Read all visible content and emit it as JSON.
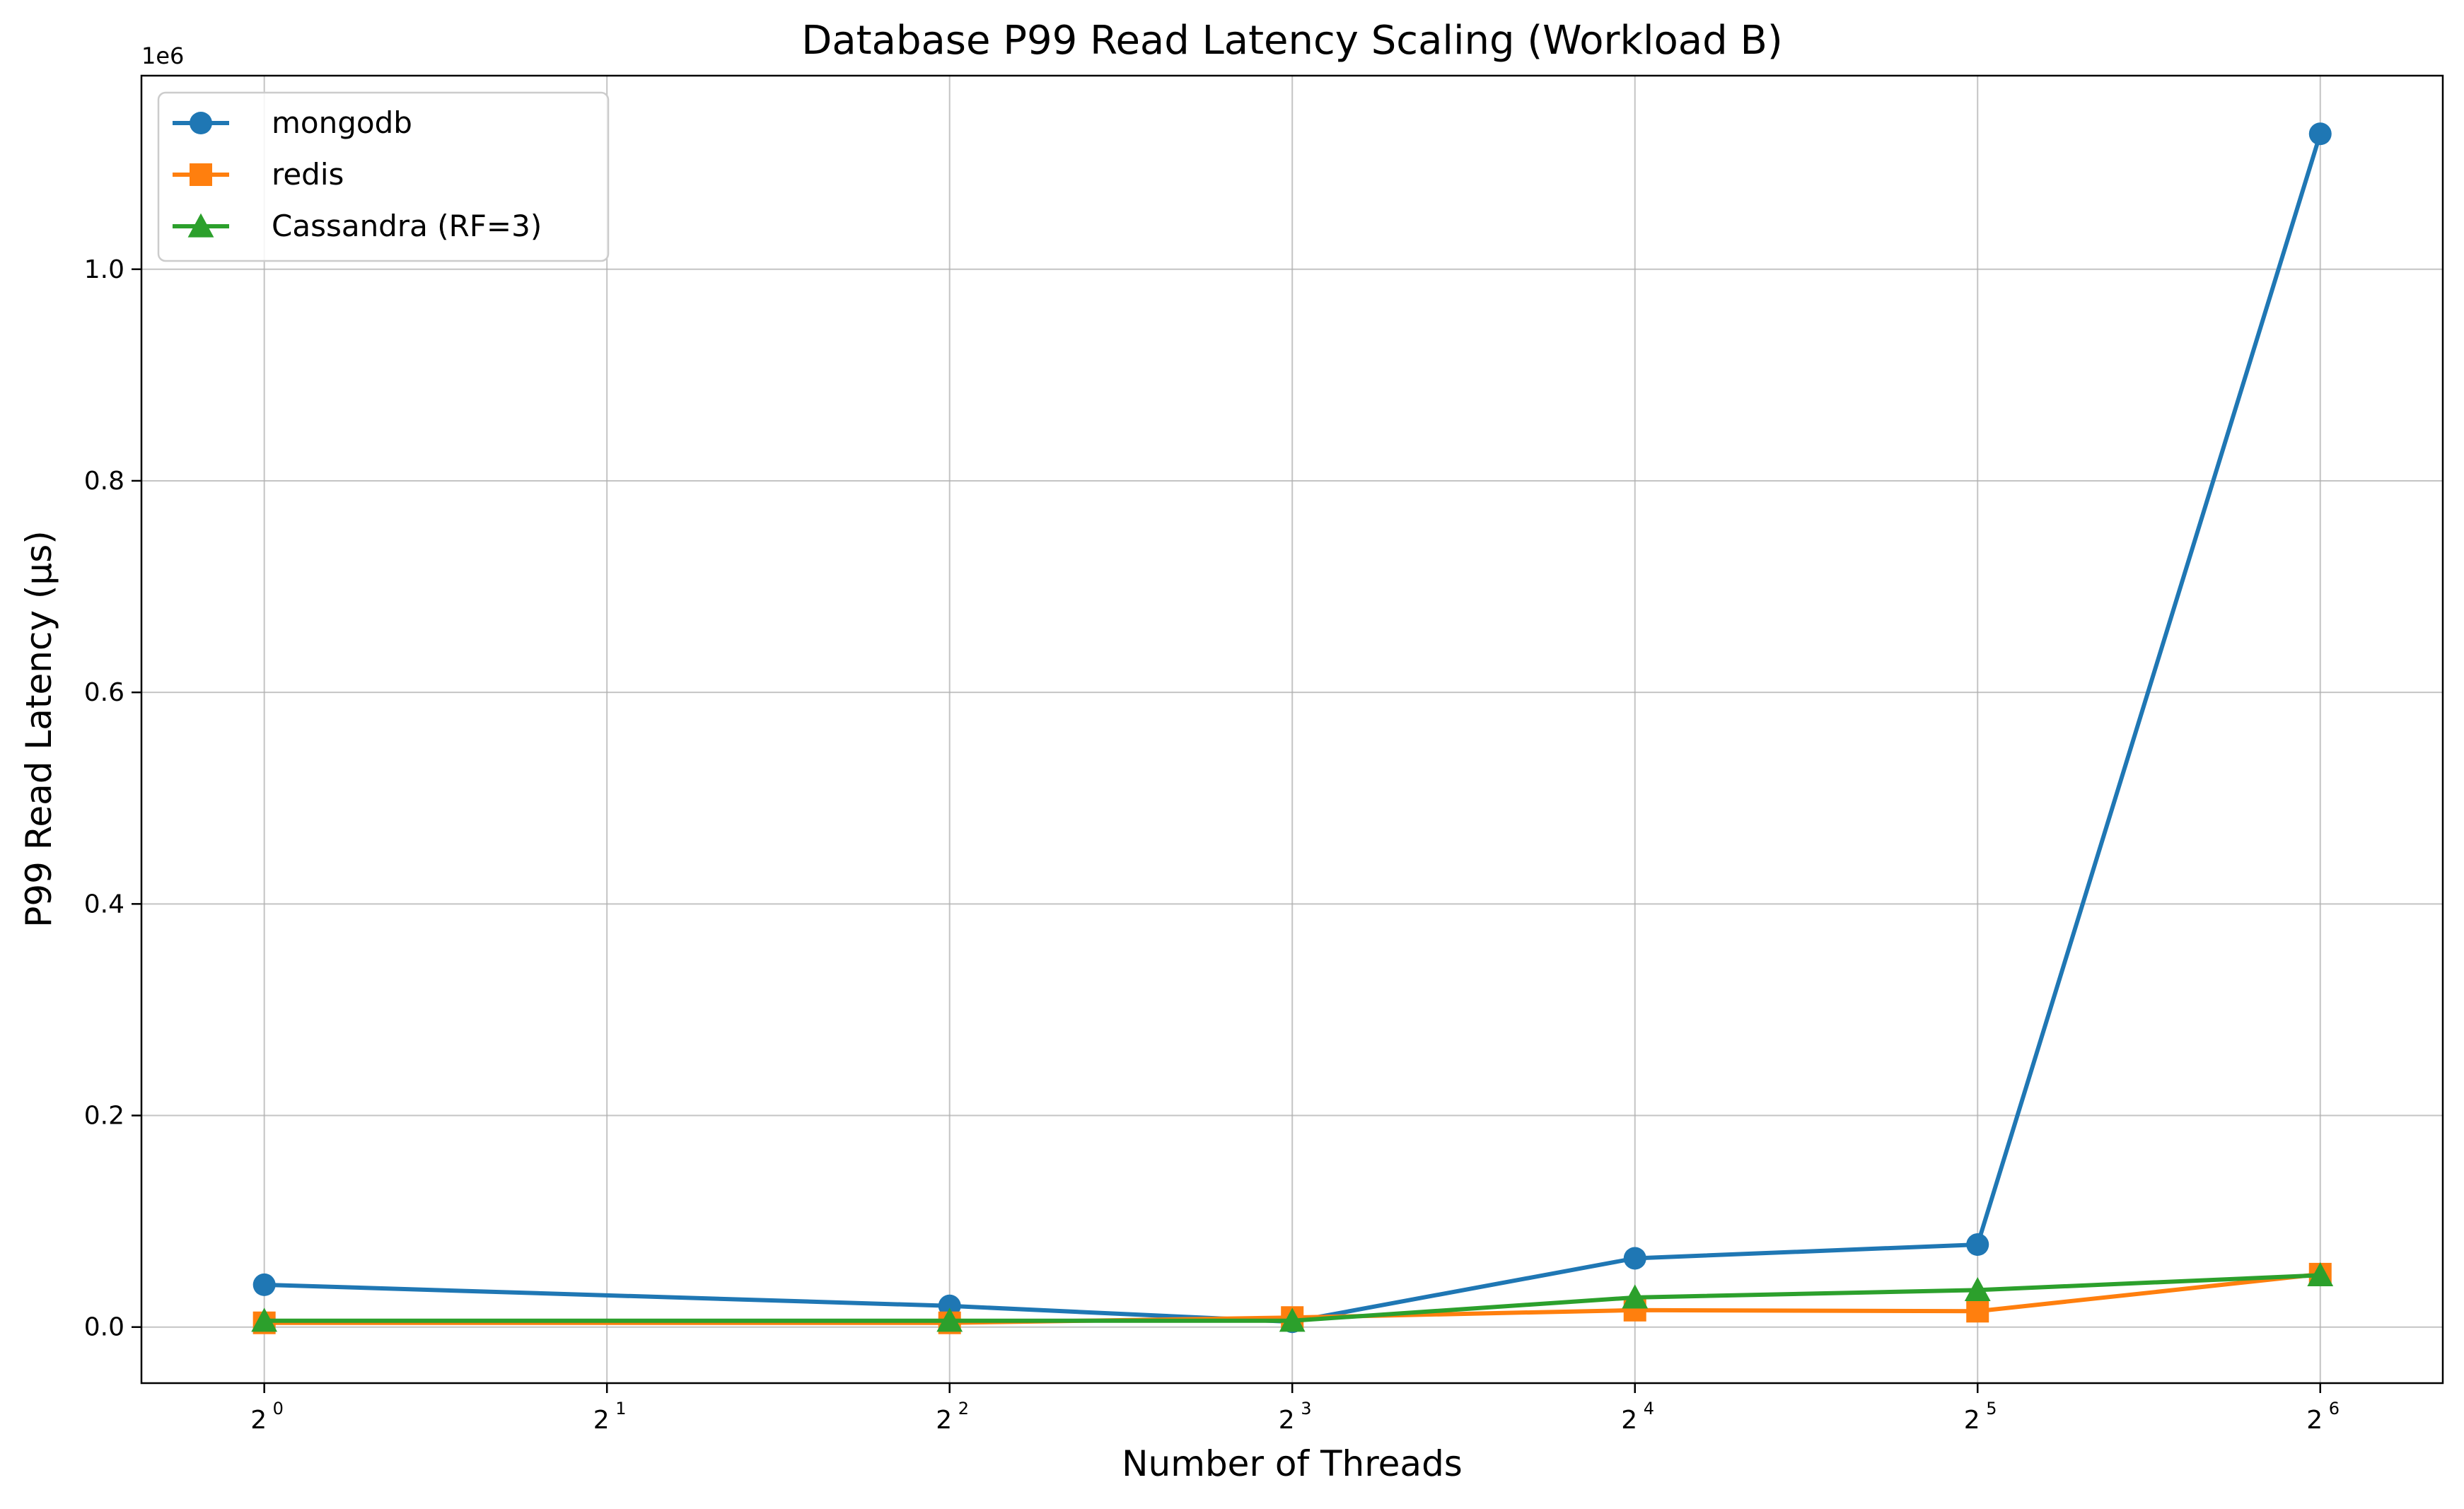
{
  "chart_data": {
    "type": "line",
    "title": "Database P99 Read Latency Scaling (Workload B)",
    "xlabel": "Number of Threads",
    "ylabel": "P99 Read Latency (µs)",
    "x_scale": "log2",
    "xlim": [
      0.78,
      82
    ],
    "ylim": [
      -53000,
      1183000
    ],
    "y_offset_label": "1e6",
    "x_ticks": [
      {
        "value": 1,
        "base": "2",
        "exp": "0"
      },
      {
        "value": 2,
        "base": "2",
        "exp": "1"
      },
      {
        "value": 4,
        "base": "2",
        "exp": "2"
      },
      {
        "value": 8,
        "base": "2",
        "exp": "3"
      },
      {
        "value": 16,
        "base": "2",
        "exp": "4"
      },
      {
        "value": 32,
        "base": "2",
        "exp": "5"
      },
      {
        "value": 64,
        "base": "2",
        "exp": "6"
      }
    ],
    "y_ticks": [
      {
        "value": 0,
        "label": "0.0"
      },
      {
        "value": 200000,
        "label": "0.2"
      },
      {
        "value": 400000,
        "label": "0.4"
      },
      {
        "value": 600000,
        "label": "0.6"
      },
      {
        "value": 800000,
        "label": "0.8"
      },
      {
        "value": 1000000,
        "label": "1.0"
      }
    ],
    "grid": true,
    "legend_position": "top-left",
    "x": [
      1,
      4,
      8,
      16,
      32,
      64
    ],
    "series": [
      {
        "name": "mongodb",
        "color": "#1f77b4",
        "marker": "circle",
        "values": [
          40000,
          20000,
          5000,
          65000,
          78000,
          1128000
        ]
      },
      {
        "name": "redis",
        "color": "#ff7f0e",
        "marker": "square",
        "values": [
          4000,
          4000,
          9000,
          16000,
          15000,
          50000
        ]
      },
      {
        "name": "Cassandra (RF=3)",
        "color": "#2ca02c",
        "marker": "triangle",
        "values": [
          6000,
          6000,
          6000,
          28000,
          35000,
          49000
        ]
      }
    ]
  }
}
